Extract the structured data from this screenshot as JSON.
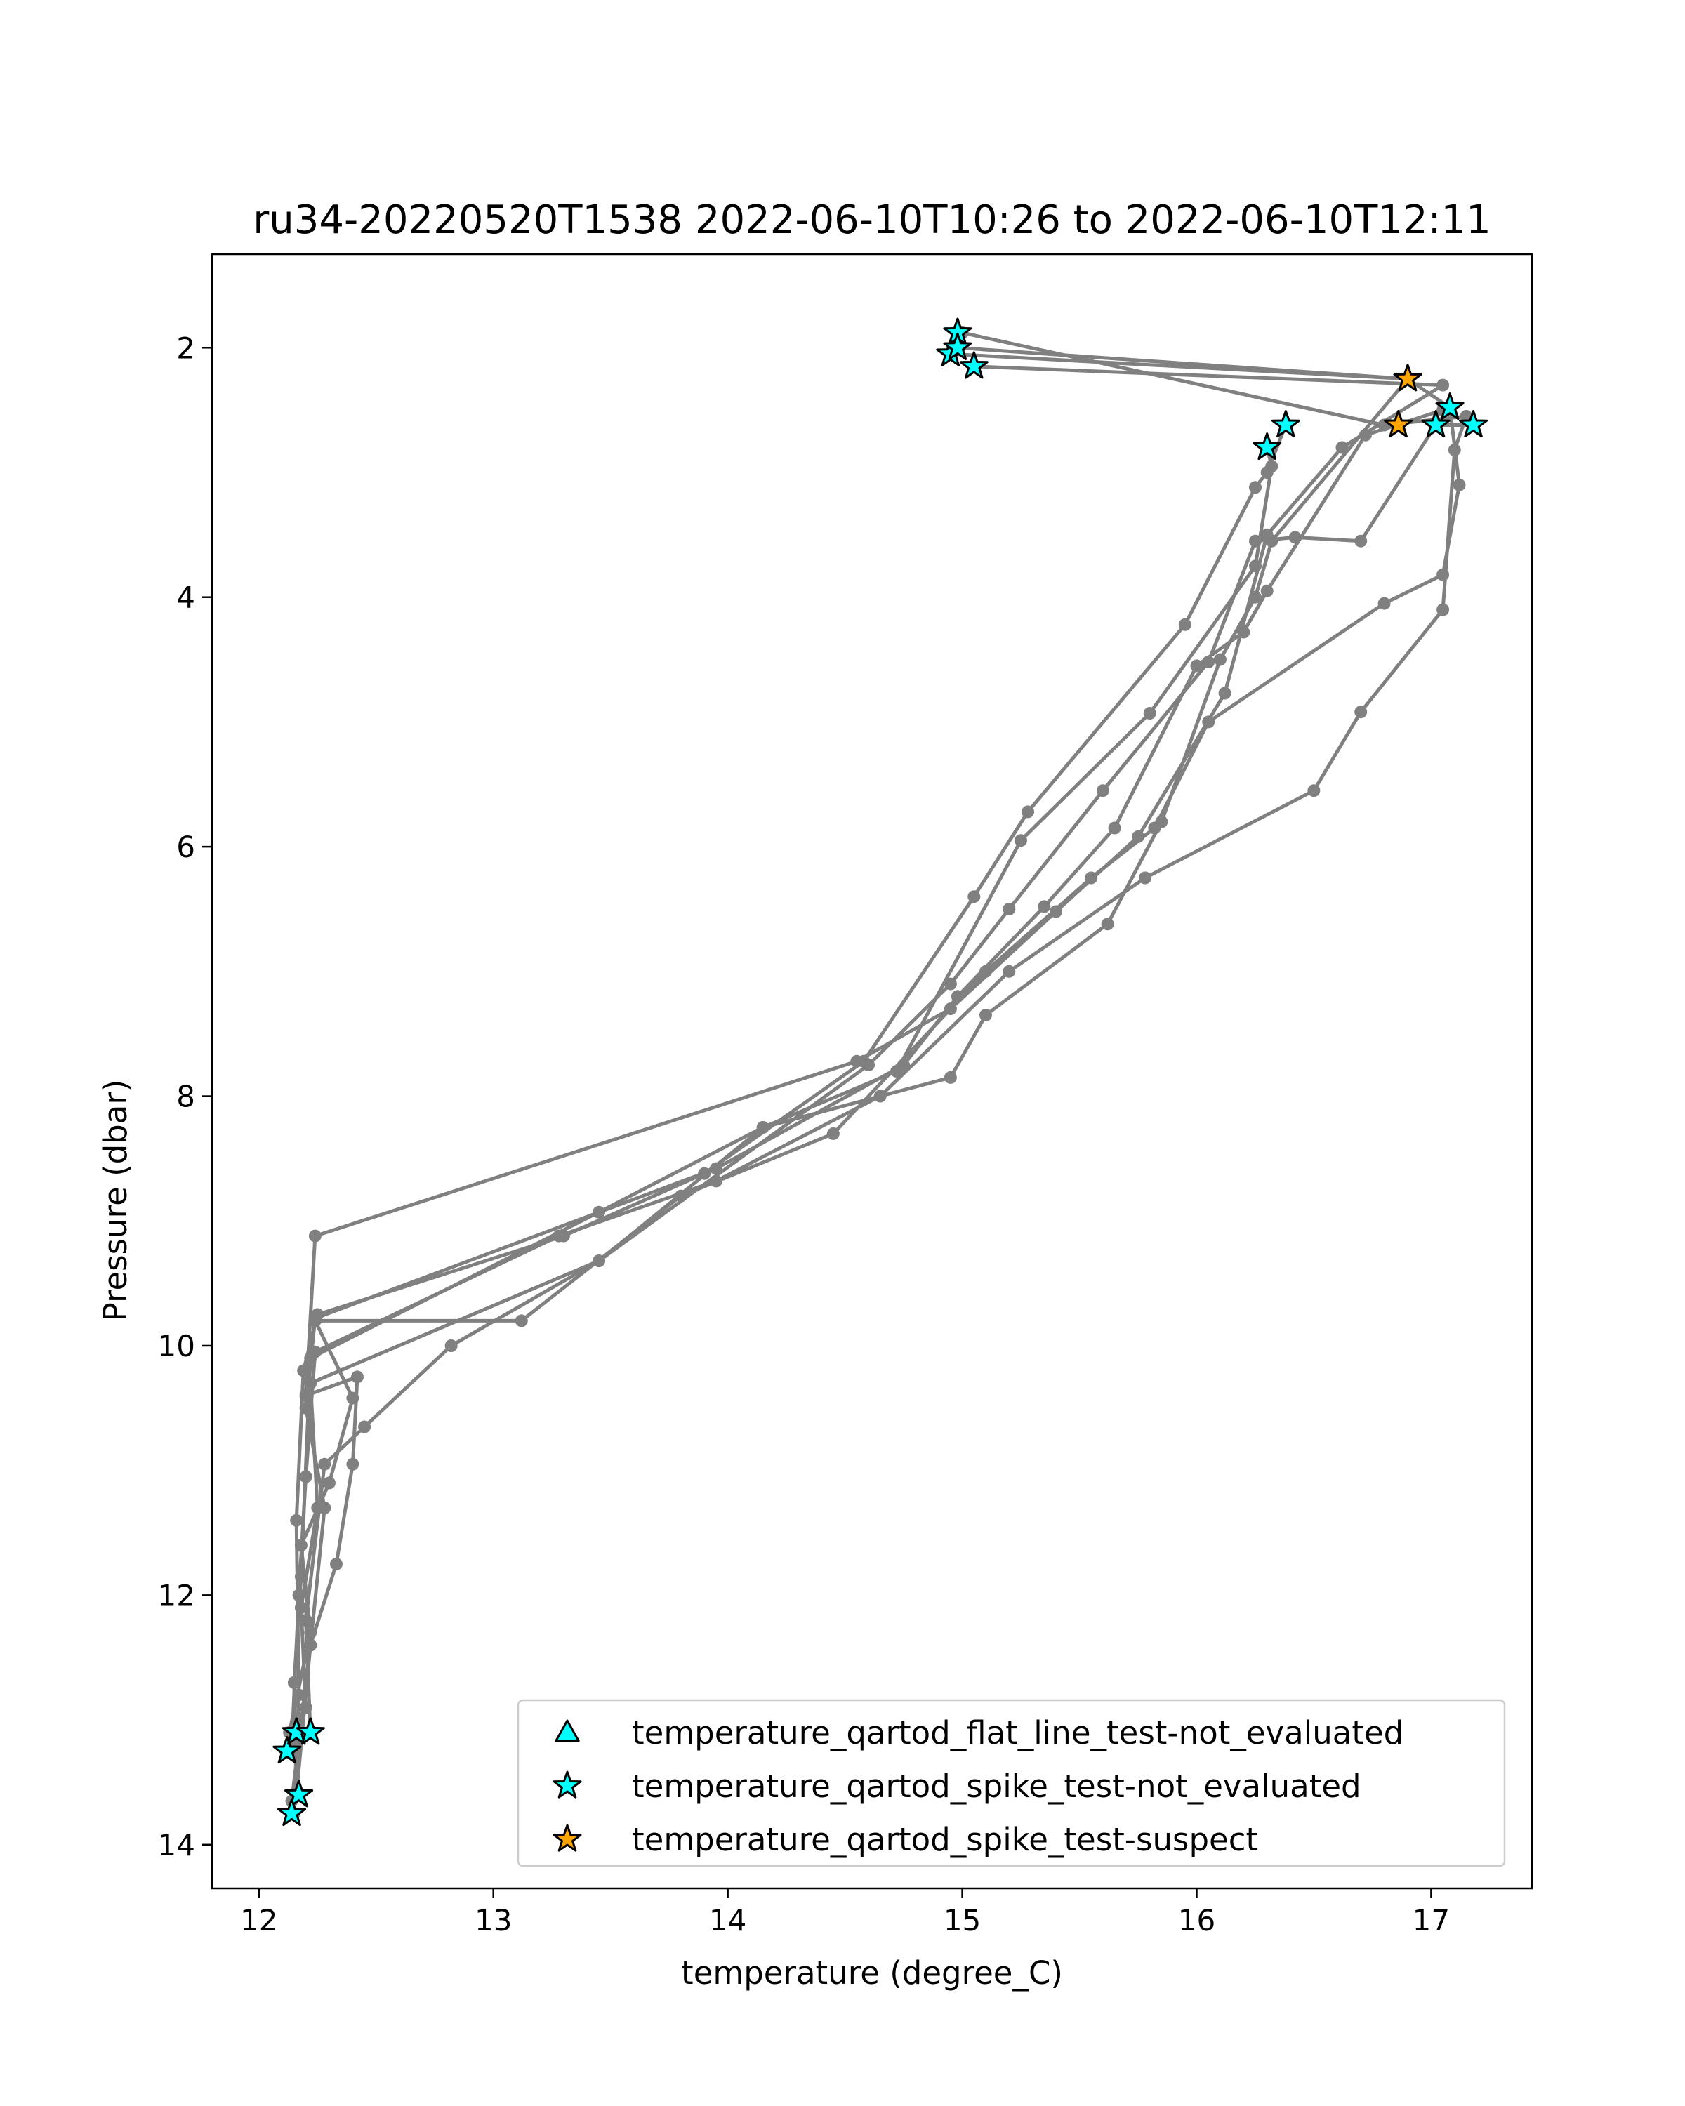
{
  "chart_data": {
    "type": "line",
    "title": "ru34-20220520T1538 2022-06-10T10:26 to 2022-06-10T12:11",
    "xlabel": "temperature (degree_C)",
    "ylabel": "Pressure (dbar)",
    "xlim": [
      11.8,
      17.43
    ],
    "ylim": [
      14.35,
      1.25
    ],
    "y_inverted": true,
    "xticks": [
      12,
      13,
      14,
      15,
      16,
      17
    ],
    "yticks": [
      2,
      4,
      6,
      8,
      10,
      12,
      14
    ],
    "grid": false,
    "line_color": "#808080",
    "legend_position": "lower-right",
    "series": [
      {
        "points": [
          [
            12.16,
            13.6
          ],
          [
            12.15,
            12.7
          ],
          [
            12.18,
            11.85
          ],
          [
            12.22,
            10.1
          ],
          [
            13.45,
            8.93
          ],
          [
            14.15,
            8.25
          ],
          [
            14.72,
            7.8
          ],
          [
            15.25,
            5.95
          ],
          [
            15.8,
            4.93
          ],
          [
            16.25,
            3.75
          ],
          [
            16.32,
            2.95
          ],
          [
            16.3,
            2.8
          ]
        ]
      },
      {
        "points": [
          [
            12.15,
            13.75
          ],
          [
            12.17,
            12.8
          ],
          [
            12.16,
            11.4
          ],
          [
            12.19,
            10.2
          ],
          [
            12.25,
            9.75
          ],
          [
            13.3,
            9.12
          ],
          [
            13.9,
            8.62
          ],
          [
            14.58,
            7.72
          ],
          [
            15.05,
            6.4
          ],
          [
            15.28,
            5.72
          ],
          [
            15.95,
            4.22
          ],
          [
            16.25,
            3.12
          ],
          [
            16.3,
            3.0
          ],
          [
            16.38,
            2.62
          ]
        ]
      },
      {
        "points": [
          [
            12.12,
            13.25
          ],
          [
            12.2,
            12.9
          ],
          [
            12.18,
            12.1
          ],
          [
            12.25,
            11.3
          ],
          [
            12.22,
            10.3
          ],
          [
            13.45,
            9.32
          ],
          [
            14.6,
            7.75
          ],
          [
            14.95,
            7.1
          ],
          [
            15.2,
            6.5
          ],
          [
            15.6,
            5.55
          ],
          [
            16.05,
            4.52
          ],
          [
            16.25,
            3.55
          ],
          [
            16.42,
            3.52
          ],
          [
            16.7,
            3.55
          ],
          [
            17.02,
            2.62
          ],
          [
            17.18,
            2.62
          ]
        ]
      },
      {
        "points": [
          [
            12.16,
            13.6
          ],
          [
            12.22,
            12.4
          ],
          [
            12.28,
            11.3
          ],
          [
            12.2,
            10.5
          ],
          [
            12.24,
            9.78
          ],
          [
            13.95,
            8.58
          ],
          [
            14.75,
            7.75
          ],
          [
            14.98,
            7.2
          ],
          [
            15.35,
            6.48
          ],
          [
            15.65,
            5.85
          ],
          [
            16.0,
            4.55
          ],
          [
            16.2,
            4.28
          ],
          [
            16.3,
            3.95
          ],
          [
            16.72,
            2.7
          ],
          [
            17.05,
            2.5
          ],
          [
            17.08,
            2.5
          ]
        ]
      },
      {
        "points": [
          [
            12.14,
            13.65
          ],
          [
            12.22,
            12.4
          ],
          [
            12.33,
            11.75
          ],
          [
            12.4,
            10.95
          ],
          [
            12.42,
            10.25
          ],
          [
            12.2,
            10.4
          ],
          [
            12.24,
            9.12
          ],
          [
            14.55,
            7.72
          ],
          [
            14.95,
            7.3
          ],
          [
            15.4,
            6.52
          ],
          [
            15.75,
            5.92
          ],
          [
            16.12,
            4.77
          ],
          [
            16.3,
            3.5
          ],
          [
            16.62,
            2.8
          ],
          [
            17.05,
            2.3
          ],
          [
            15.05,
            2.15
          ]
        ]
      },
      {
        "points": [
          [
            12.22,
            13.1
          ],
          [
            12.2,
            12.2
          ],
          [
            12.28,
            10.95
          ],
          [
            12.45,
            10.65
          ],
          [
            12.82,
            10.0
          ],
          [
            13.45,
            9.32
          ],
          [
            14.15,
            8.25
          ],
          [
            14.95,
            7.85
          ],
          [
            15.1,
            7.35
          ],
          [
            15.62,
            6.62
          ],
          [
            15.85,
            5.8
          ],
          [
            16.1,
            4.5
          ],
          [
            16.25,
            4.0
          ],
          [
            16.32,
            3.55
          ],
          [
            16.9,
            2.25
          ],
          [
            14.98,
            2.0
          ]
        ]
      },
      {
        "points": [
          [
            12.13,
            13.1
          ],
          [
            12.22,
            12.3
          ],
          [
            12.18,
            11.6
          ],
          [
            12.3,
            11.1
          ],
          [
            12.4,
            10.42
          ],
          [
            12.24,
            9.8
          ],
          [
            13.12,
            9.8
          ],
          [
            13.8,
            8.8
          ],
          [
            14.45,
            8.3
          ],
          [
            15.1,
            7.0
          ],
          [
            15.55,
            6.25
          ],
          [
            15.82,
            5.85
          ],
          [
            16.05,
            5.0
          ],
          [
            16.8,
            4.05
          ],
          [
            17.05,
            3.82
          ],
          [
            17.12,
            3.1
          ],
          [
            17.08,
            2.48
          ],
          [
            16.9,
            2.25
          ],
          [
            14.95,
            2.05
          ]
        ]
      },
      {
        "points": [
          [
            12.14,
            13.2
          ],
          [
            12.17,
            12.0
          ],
          [
            12.2,
            11.05
          ],
          [
            12.24,
            10.05
          ],
          [
            13.28,
            9.12
          ],
          [
            13.95,
            8.68
          ],
          [
            14.65,
            8.0
          ],
          [
            15.2,
            7.0
          ],
          [
            15.78,
            6.25
          ],
          [
            16.5,
            5.55
          ],
          [
            16.7,
            4.92
          ],
          [
            17.05,
            4.1
          ],
          [
            17.1,
            2.82
          ],
          [
            17.15,
            2.55
          ],
          [
            16.8,
            2.62
          ],
          [
            15.0,
            1.88
          ]
        ]
      }
    ],
    "qc_markers": {
      "spike_not_evaluated": [
        [
          14.98,
          1.88
        ],
        [
          15.05,
          2.15
        ],
        [
          14.95,
          2.05
        ],
        [
          14.98,
          2.0
        ],
        [
          17.08,
          2.48
        ],
        [
          17.02,
          2.62
        ],
        [
          17.18,
          2.62
        ],
        [
          16.38,
          2.62
        ],
        [
          16.3,
          2.8
        ],
        [
          12.12,
          13.25
        ],
        [
          12.16,
          13.1
        ],
        [
          12.22,
          13.1
        ],
        [
          12.17,
          13.6
        ],
        [
          12.14,
          13.75
        ]
      ],
      "spike_suspect": [
        [
          16.9,
          2.25
        ],
        [
          16.86,
          2.62
        ]
      ],
      "flat_line_not_evaluated": []
    },
    "legend": [
      {
        "label": "temperature_qartod_flat_line_test-not_evaluated",
        "marker": "triangle",
        "color": "#00ffff"
      },
      {
        "label": "temperature_qartod_spike_test-not_evaluated",
        "marker": "star",
        "color": "#00ffff"
      },
      {
        "label": "temperature_qartod_spike_test-suspect",
        "marker": "star",
        "color": "#ffa500"
      }
    ]
  }
}
